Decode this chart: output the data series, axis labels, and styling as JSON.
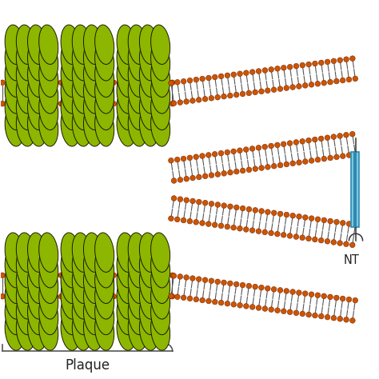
{
  "bg_color": "#ffffff",
  "helix_color": "#8db600",
  "helix_edge_color": "#1a1a00",
  "bead_color": "#cc5500",
  "bead_edge_color": "#7a2200",
  "tail_color": "#555555",
  "bracket_color": "#555555",
  "nt_box_light": "#7ec8e3",
  "nt_box_dark": "#2b8ab0",
  "nt_text": "NT",
  "plaque_text": "Plaque",
  "figsize": [
    4.74,
    4.74
  ],
  "dpi": 100,
  "xlim": [
    0,
    10
  ],
  "ylim": [
    0,
    10
  ]
}
